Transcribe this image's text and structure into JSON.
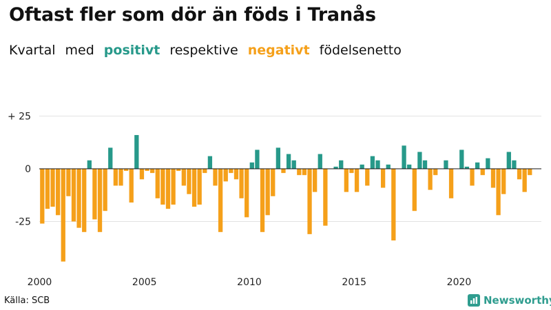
{
  "title": "Oftast fler som dör än föds i Tranås",
  "subtitle": {
    "w1": "Kvartal",
    "w2": "med",
    "positive_word": "positivt",
    "w3": "respektive",
    "negative_word": "negativt",
    "w4": "födelsenetto"
  },
  "colors": {
    "positive": "#27998a",
    "negative": "#f5a01a",
    "grid": "#e2e2e2",
    "text": "#111111"
  },
  "source": "Källa: SCB",
  "brand": {
    "name": "Newsworthy",
    "icon": "newsworthy-logo-icon"
  },
  "chart_data": {
    "type": "bar",
    "xlabel": "",
    "ylabel": "",
    "ylim": [
      -46,
      28
    ],
    "grid": true,
    "y_ticks": [
      {
        "value": 25,
        "label": "+ 25"
      },
      {
        "value": 0,
        "label": "0"
      },
      {
        "value": -25,
        "label": "-25"
      }
    ],
    "x_ticks": [
      {
        "value": 2000,
        "label": "2000"
      },
      {
        "value": 2005,
        "label": "2005"
      },
      {
        "value": 2010,
        "label": "2010"
      },
      {
        "value": 2015,
        "label": "2015"
      },
      {
        "value": 2020,
        "label": "2020"
      }
    ],
    "start": {
      "year": 2000,
      "quarter": 1
    },
    "values": [
      -26,
      -19,
      -18,
      -22,
      -44,
      -13,
      -25,
      -28,
      -30,
      4,
      -24,
      -30,
      -20,
      10,
      -8,
      -8,
      -1,
      -16,
      16,
      -5,
      -1,
      -2,
      -14,
      -17,
      -19,
      -17,
      -1,
      -8,
      -12,
      -18,
      -17,
      -2,
      6,
      -8,
      -30,
      -6,
      -2,
      -5,
      -14,
      -23,
      3,
      9,
      -30,
      -22,
      -13,
      10,
      -2,
      7,
      4,
      -3,
      -3,
      -31,
      -11,
      7,
      -27,
      0,
      1,
      4,
      -11,
      -2,
      -11,
      2,
      -8,
      6,
      4,
      -9,
      2,
      -34,
      0,
      11,
      2,
      -20,
      8,
      4,
      -10,
      -3,
      0,
      4,
      -14,
      0,
      9,
      1,
      -8,
      3,
      -3,
      5,
      -9,
      -22,
      -12,
      8,
      4,
      -5,
      -11,
      -3
    ]
  }
}
